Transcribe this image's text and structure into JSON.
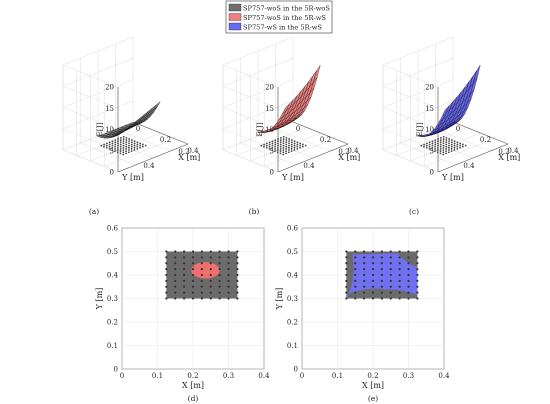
{
  "legend": {
    "placement": "top-center",
    "entries": [
      {
        "label": "SP757-woS in the 5R-woS",
        "color": "#6e6e6e"
      },
      {
        "label": "SP757-woS in the 5R-wS",
        "color": "#f08080"
      },
      {
        "label": "SP757-wS in the 5R-wS",
        "color": "#6a6af0"
      }
    ]
  },
  "chart_data": [
    {
      "type": "surface3d",
      "panel": "(a)",
      "zlabel": "E[J]",
      "xlabel": "X [m]",
      "ylabel": "Y [m]",
      "zlim": [
        0,
        20
      ],
      "zticks": [
        0,
        5,
        10,
        15,
        20
      ],
      "xticks": [
        0,
        0.2,
        0.4
      ],
      "yticks": [
        0.2,
        0.4
      ],
      "surface": {
        "z_min": 2.5,
        "z_max": 10,
        "color": "#555555"
      },
      "grid": true
    },
    {
      "type": "surface3d",
      "panel": "(b)",
      "zlabel": "E[J]",
      "xlabel": "X [m]",
      "ylabel": "Y [m]",
      "zlim": [
        0,
        20
      ],
      "zticks": [
        0,
        5,
        10,
        15,
        20
      ],
      "xticks": [
        0,
        0.2,
        0.4
      ],
      "yticks": [
        0.2,
        0.4
      ],
      "surface": {
        "z_min": 3,
        "z_max": 18,
        "color": "#e05555"
      },
      "grid": true
    },
    {
      "type": "surface3d",
      "panel": "(c)",
      "zlabel": "E[J]",
      "xlabel": "X [m]",
      "ylabel": "Y [m]",
      "zlim": [
        0,
        20
      ],
      "zticks": [
        0,
        5,
        10,
        15,
        20
      ],
      "xticks": [
        0,
        0.2,
        0.4
      ],
      "yticks": [
        0.2,
        0.4
      ],
      "surface": {
        "z_min": 2,
        "z_max": 18,
        "color": "#3333dd"
      },
      "grid": true
    },
    {
      "type": "heatmap",
      "panel": "(d)",
      "xlabel": "X [m]",
      "ylabel": "Y [m]",
      "xlim": [
        0,
        0.4
      ],
      "ylim": [
        0,
        0.6
      ],
      "xticks": [
        0,
        0.1,
        0.2,
        0.3,
        0.4
      ],
      "yticks": [
        0,
        0.1,
        0.2,
        0.3,
        0.4,
        0.5,
        0.6
      ],
      "region": {
        "x": [
          0.125,
          0.325
        ],
        "y": [
          0.3,
          0.5
        ],
        "color": "#6b6b6b"
      },
      "inner_region": {
        "shape": "ellipse",
        "cx": 0.235,
        "cy": 0.42,
        "rx": 0.04,
        "ry": 0.035,
        "color": "#f07070"
      },
      "grid_points": {
        "x_start": 0.125,
        "x_step": 0.025,
        "nx": 9,
        "y_start": 0.3,
        "y_step": 0.025,
        "ny": 9
      }
    },
    {
      "type": "heatmap",
      "panel": "(e)",
      "xlabel": "X [m]",
      "ylabel": "Y [m]",
      "xlim": [
        0,
        0.4
      ],
      "ylim": [
        0,
        0.6
      ],
      "xticks": [
        0,
        0.1,
        0.2,
        0.3,
        0.4
      ],
      "yticks": [
        0,
        0.1,
        0.2,
        0.3,
        0.4,
        0.5,
        0.6
      ],
      "region": {
        "x": [
          0.125,
          0.325
        ],
        "y": [
          0.3,
          0.5
        ],
        "color": "#6b6b6b"
      },
      "inner_region": {
        "shape": "rounded",
        "color": "#7070f0"
      },
      "grid_points": {
        "x_start": 0.125,
        "x_step": 0.025,
        "nx": 9,
        "y_start": 0.3,
        "y_step": 0.025,
        "ny": 9
      }
    }
  ]
}
